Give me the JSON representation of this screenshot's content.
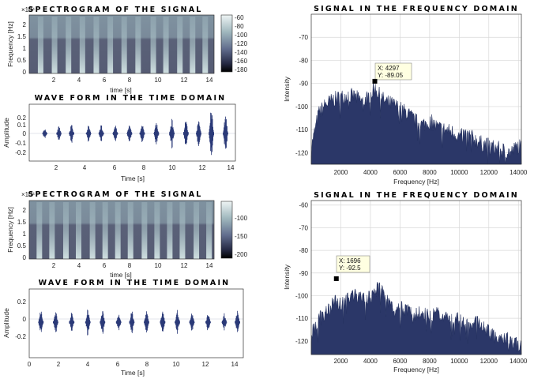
{
  "chart_data": [
    {
      "id": "spec1",
      "type": "heatmap",
      "title": "SPECTROGRAM OF THE SIGNAL",
      "xlabel": "time [s]",
      "ylabel": "Frequency [Hz]",
      "y_exponent_label": "×10⁴",
      "xlim": [
        0,
        14.6
      ],
      "ylim": [
        0,
        2.4
      ],
      "xticks": [
        "2",
        "4",
        "6",
        "8",
        "10",
        "12",
        "14"
      ],
      "yticks": [
        "0",
        "0.5",
        "1",
        "1.5",
        "2"
      ],
      "colorbar_ticks": [
        "-60",
        "-80",
        "-100",
        "-120",
        "-140",
        "-160",
        "-180"
      ],
      "colorbar_range": [
        -190,
        -55
      ],
      "burst_times": [
        0.9,
        2.0,
        3.1,
        4.2,
        5.3,
        6.4,
        7.5,
        8.6,
        9.8,
        10.8,
        11.9,
        12.9,
        13.9
      ]
    },
    {
      "id": "wave1",
      "type": "line",
      "title": "WAVE FORM IN THE TIME DOMAIN",
      "xlabel": "Time [s]",
      "ylabel": "Amplitude",
      "xlim": [
        0,
        14.6
      ],
      "ylim": [
        -0.3,
        0.32
      ],
      "xticks": [
        "2",
        "4",
        "6",
        "8",
        "10",
        "12",
        "14"
      ],
      "yticks": [
        "0.2",
        "0.1",
        "0",
        "-0.1",
        "-0.2"
      ],
      "burst_times": [
        1.1,
        2.1,
        3.0,
        4.2,
        5.1,
        6.1,
        7.1,
        8.0,
        9.0,
        10.1,
        11.1,
        12.0,
        12.9,
        13.9
      ],
      "burst_amplitudes": [
        0.06,
        0.08,
        0.1,
        0.09,
        0.1,
        0.1,
        0.11,
        0.11,
        0.13,
        0.16,
        0.17,
        0.16,
        0.3,
        0.22
      ]
    },
    {
      "id": "spec2",
      "type": "heatmap",
      "title": "SPECTROGRAM OF THE SIGNAL",
      "xlabel": "time [s]",
      "ylabel": "Frequency [Hz]",
      "y_exponent_label": "×10⁴",
      "xlim": [
        0,
        14.6
      ],
      "ylim": [
        0,
        2.4
      ],
      "xticks": [
        "2",
        "4",
        "6",
        "8",
        "10",
        "12",
        "14"
      ],
      "yticks": [
        "0",
        "0.5",
        "1",
        "1.5",
        "2"
      ],
      "colorbar_ticks": [
        "-100",
        "-150",
        "-200"
      ],
      "colorbar_range": [
        -210,
        -80
      ],
      "burst_times": [
        0.8,
        1.8,
        2.9,
        3.9,
        5.0,
        6.0,
        7.0,
        8.0,
        9.1,
        10.1,
        11.1,
        12.1,
        13.2,
        14.2
      ]
    },
    {
      "id": "wave2",
      "type": "line",
      "title": "WAVE FORM IN THE TIME DOMAIN",
      "xlabel": "Time [s]",
      "ylabel": "Amplitude",
      "xlim": [
        0,
        14.6
      ],
      "ylim": [
        -0.34,
        0.32
      ],
      "xticks": [
        "0",
        "2",
        "4",
        "6",
        "8",
        "10",
        "12",
        "14"
      ],
      "yticks": [
        "0.2",
        "0",
        "-0.2"
      ],
      "burst_times": [
        0.8,
        1.8,
        2.9,
        4.0,
        5.0,
        6.1,
        7.0,
        8.0,
        9.1,
        10.1,
        11.1,
        12.2,
        13.3,
        14.2
      ],
      "burst_amplitudes": [
        0.14,
        0.11,
        0.1,
        0.13,
        0.13,
        0.1,
        0.12,
        0.11,
        0.12,
        0.12,
        0.11,
        0.1,
        0.09,
        0.11
      ]
    },
    {
      "id": "freq1",
      "type": "area",
      "title": "SIGNAL IN THE FREQUENCY DOMAIN",
      "xlabel": "Frequency [Hz]",
      "ylabel": "Intensity",
      "xlim": [
        0,
        14200
      ],
      "ylim": [
        -125,
        -60
      ],
      "xticks": [
        "2000",
        "4000",
        "6000",
        "8000",
        "10000",
        "12000",
        "14000"
      ],
      "yticks": [
        "-70",
        "-80",
        "-90",
        "-100",
        "-110",
        "-120"
      ],
      "series": [
        {
          "name": "spectrum",
          "x": [
            0,
            500,
            1000,
            1500,
            2000,
            2500,
            3000,
            3500,
            4000,
            4300,
            4600,
            5000,
            5500,
            6000,
            6500,
            7000,
            7500,
            8000,
            8500,
            9000,
            9500,
            10000,
            10500,
            11000,
            11500,
            12000,
            12500,
            13000,
            13500,
            14000,
            14200
          ],
          "y": [
            -118,
            -103,
            -99,
            -97,
            -96,
            -95,
            -96,
            -98,
            -95,
            -92,
            -95,
            -98,
            -99,
            -101,
            -103,
            -106,
            -108,
            -106,
            -109,
            -110,
            -111,
            -113,
            -112,
            -114,
            -116,
            -117,
            -118,
            -119,
            -120,
            -117,
            -118
          ]
        }
      ],
      "annotation": {
        "x_label": "X: 4297",
        "y_label": "Y: -89.05",
        "x": 4297,
        "y": -89.05
      }
    },
    {
      "id": "freq2",
      "type": "area",
      "title": "SIGNAL IN THE FREQUENCY DOMAIN",
      "xlabel": "Frequency [Hz]",
      "ylabel": "Intensity",
      "xlim": [
        0,
        14200
      ],
      "ylim": [
        -126,
        -58
      ],
      "xticks": [
        "2000",
        "4000",
        "6000",
        "8000",
        "10000",
        "12000",
        "14000"
      ],
      "yticks": [
        "-60",
        "-70",
        "-80",
        "-90",
        "-100",
        "-110",
        "-120"
      ],
      "series": [
        {
          "name": "spectrum",
          "x": [
            0,
            500,
            1000,
            1500,
            2000,
            2500,
            3000,
            3500,
            4000,
            4500,
            5000,
            5500,
            6000,
            6500,
            7000,
            7500,
            8000,
            8500,
            9000,
            9500,
            10000,
            10500,
            11000,
            11500,
            12000,
            12500,
            13000,
            13500,
            14000,
            14200
          ],
          "y": [
            -117,
            -111,
            -107,
            -103,
            -104,
            -101,
            -99,
            -102,
            -101,
            -97,
            -100,
            -105,
            -105,
            -106,
            -108,
            -107,
            -110,
            -107,
            -109,
            -111,
            -110,
            -114,
            -110,
            -114,
            -116,
            -118,
            -119,
            -120,
            -122,
            -123
          ]
        }
      ],
      "annotation": {
        "x_label": "X: 1696",
        "y_label": "Y: -92.5",
        "x": 1696,
        "y": -92.5
      }
    }
  ]
}
